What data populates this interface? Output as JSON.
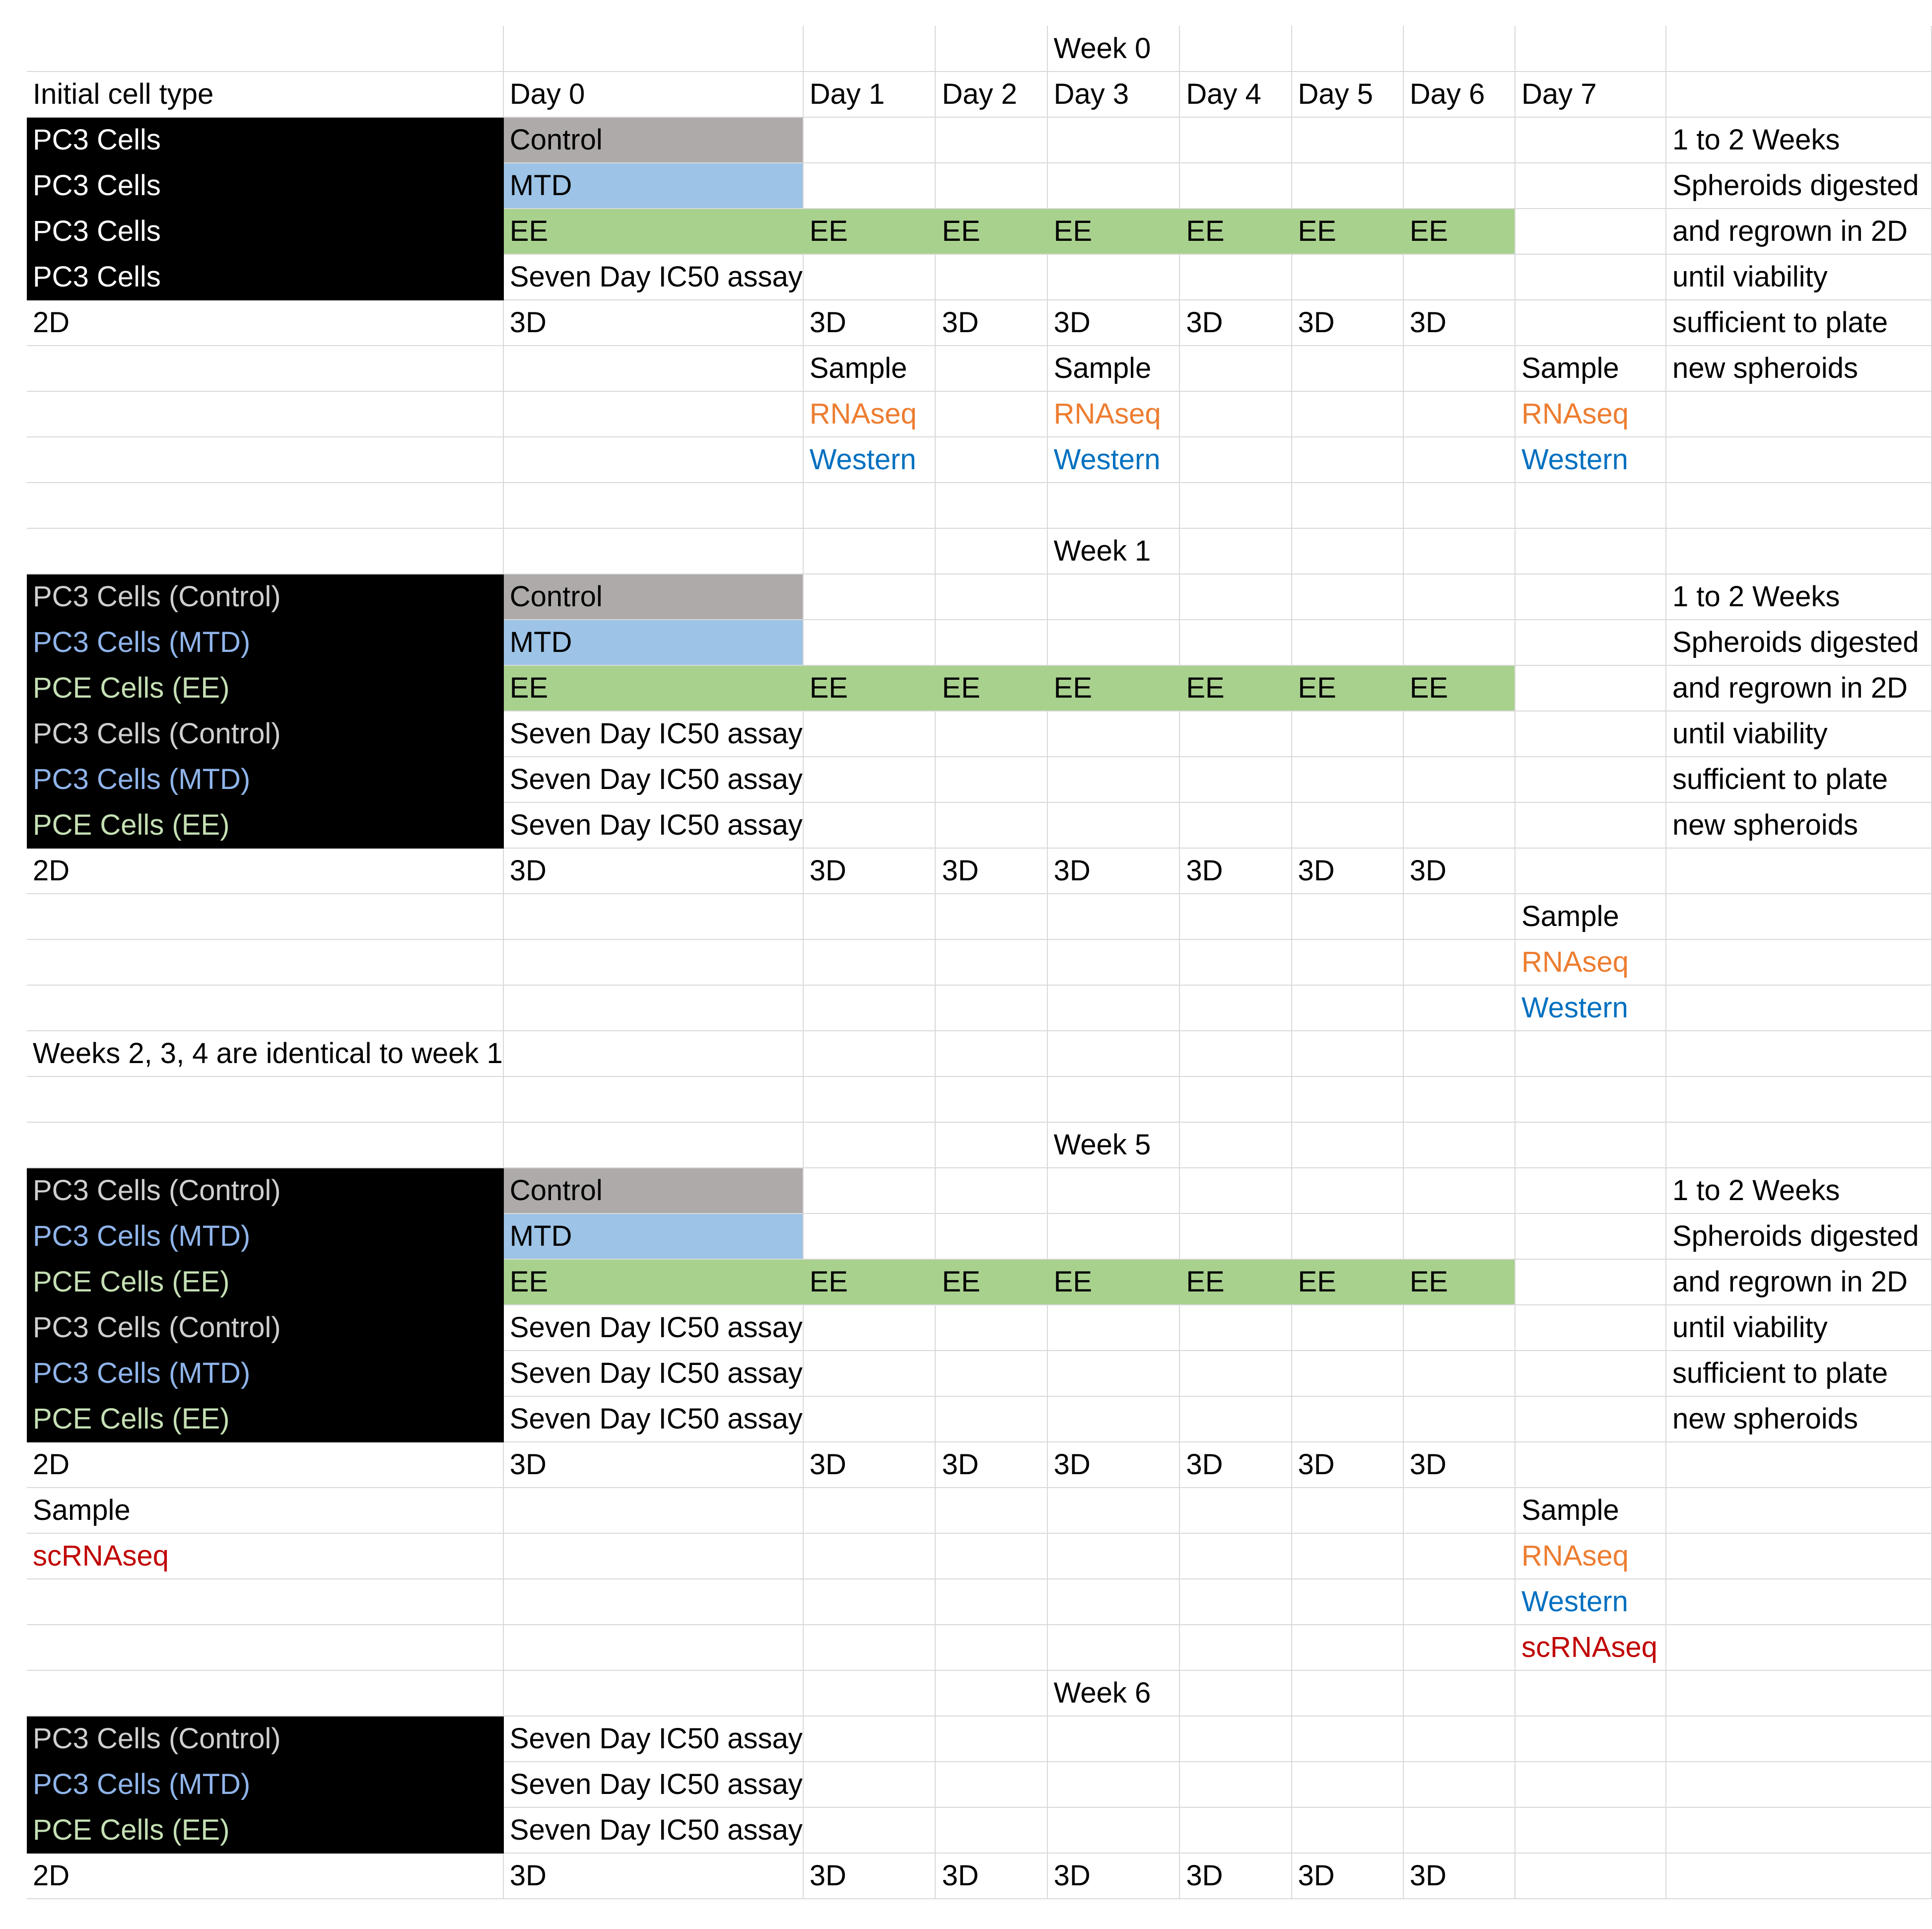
{
  "colors": {
    "control_fill": "#aeaaaa",
    "mtd_fill": "#9dc3e6",
    "ee_fill": "#a9d18e",
    "label_background": "#000000",
    "rnaseq_text": "#ed7d31",
    "western_text": "#0070c0",
    "scrnaseq_text": "#c00000",
    "gridline": "#d9d9d9"
  },
  "rows": [
    [
      "",
      "",
      "",
      "",
      "Week 0",
      "",
      "",
      "",
      "",
      ""
    ],
    [
      "Initial cell type",
      "Day 0",
      "Day 1",
      "Day 2",
      "Day 3",
      "Day 4",
      "Day 5",
      "Day 6",
      "Day 7",
      ""
    ],
    [
      "PC3 Cells",
      "Control",
      "",
      "",
      "",
      "",
      "",
      "",
      "",
      "1 to 2 Weeks"
    ],
    [
      "PC3 Cells",
      "MTD",
      "",
      "",
      "",
      "",
      "",
      "",
      "",
      "Spheroids digested"
    ],
    [
      "PC3 Cells",
      "EE",
      "EE",
      "EE",
      "EE",
      "EE",
      "EE",
      "EE",
      "",
      "and regrown in 2D"
    ],
    [
      "PC3 Cells",
      "Seven Day IC50 assay",
      "",
      "",
      "",
      "",
      "",
      "",
      "",
      "until viability"
    ],
    [
      "2D",
      "3D",
      "3D",
      "3D",
      "3D",
      "3D",
      "3D",
      "3D",
      "",
      "sufficient to plate"
    ],
    [
      "",
      "",
      "Sample",
      "",
      "Sample",
      "",
      "",
      "",
      "Sample",
      "new spheroids"
    ],
    [
      "",
      "",
      "RNAseq",
      "",
      "RNAseq",
      "",
      "",
      "",
      "RNAseq",
      ""
    ],
    [
      "",
      "",
      "Western",
      "",
      "Western",
      "",
      "",
      "",
      "Western",
      ""
    ],
    [
      "",
      "",
      "",
      "",
      "",
      "",
      "",
      "",
      "",
      ""
    ],
    [
      "",
      "",
      "",
      "",
      "Week 1",
      "",
      "",
      "",
      "",
      ""
    ],
    [
      "PC3 Cells (Control)",
      "Control",
      "",
      "",
      "",
      "",
      "",
      "",
      "",
      "1 to 2 Weeks"
    ],
    [
      "PC3 Cells (MTD)",
      "MTD",
      "",
      "",
      "",
      "",
      "",
      "",
      "",
      "Spheroids digested"
    ],
    [
      "PCE Cells (EE)",
      "EE",
      "EE",
      "EE",
      "EE",
      "EE",
      "EE",
      "EE",
      "",
      "and regrown in 2D"
    ],
    [
      "PC3 Cells (Control)",
      "Seven Day IC50 assay",
      "",
      "",
      "",
      "",
      "",
      "",
      "",
      "until viability"
    ],
    [
      "PC3 Cells (MTD)",
      "Seven Day IC50 assay",
      "",
      "",
      "",
      "",
      "",
      "",
      "",
      "sufficient to plate"
    ],
    [
      "PCE Cells (EE)",
      "Seven Day IC50 assay",
      "",
      "",
      "",
      "",
      "",
      "",
      "",
      "new spheroids"
    ],
    [
      "2D",
      "3D",
      "3D",
      "3D",
      "3D",
      "3D",
      "3D",
      "3D",
      "",
      ""
    ],
    [
      "",
      "",
      "",
      "",
      "",
      "",
      "",
      "",
      "Sample",
      ""
    ],
    [
      "",
      "",
      "",
      "",
      "",
      "",
      "",
      "",
      "RNAseq",
      ""
    ],
    [
      "",
      "",
      "",
      "",
      "",
      "",
      "",
      "",
      "Western",
      ""
    ],
    [
      "Weeks 2, 3, 4 are identical to week 1",
      "",
      "",
      "",
      "",
      "",
      "",
      "",
      "",
      ""
    ],
    [
      "",
      "",
      "",
      "",
      "",
      "",
      "",
      "",
      "",
      ""
    ],
    [
      "",
      "",
      "",
      "",
      "Week 5",
      "",
      "",
      "",
      "",
      ""
    ],
    [
      "PC3 Cells (Control)",
      "Control",
      "",
      "",
      "",
      "",
      "",
      "",
      "",
      "1 to 2 Weeks"
    ],
    [
      "PC3 Cells (MTD)",
      "MTD",
      "",
      "",
      "",
      "",
      "",
      "",
      "",
      "Spheroids digested"
    ],
    [
      "PCE Cells (EE)",
      "EE",
      "EE",
      "EE",
      "EE",
      "EE",
      "EE",
      "EE",
      "",
      "and regrown in 2D"
    ],
    [
      "PC3 Cells (Control)",
      "Seven Day IC50 assay",
      "",
      "",
      "",
      "",
      "",
      "",
      "",
      "until viability"
    ],
    [
      "PC3 Cells (MTD)",
      "Seven Day IC50 assay",
      "",
      "",
      "",
      "",
      "",
      "",
      "",
      "sufficient to plate"
    ],
    [
      "PCE Cells (EE)",
      "Seven Day IC50 assay",
      "",
      "",
      "",
      "",
      "",
      "",
      "",
      "new spheroids"
    ],
    [
      "2D",
      "3D",
      "3D",
      "3D",
      "3D",
      "3D",
      "3D",
      "3D",
      "",
      ""
    ],
    [
      "Sample",
      "",
      "",
      "",
      "",
      "",
      "",
      "",
      "Sample",
      ""
    ],
    [
      "scRNAseq",
      "",
      "",
      "",
      "",
      "",
      "",
      "",
      "RNAseq",
      ""
    ],
    [
      "",
      "",
      "",
      "",
      "",
      "",
      "",
      "",
      "Western",
      ""
    ],
    [
      "",
      "",
      "",
      "",
      "",
      "",
      "",
      "",
      "scRNAseq",
      ""
    ],
    [
      "",
      "",
      "",
      "",
      "Week 6",
      "",
      "",
      "",
      "",
      ""
    ],
    [
      "PC3 Cells (Control)",
      "Seven Day IC50 assay",
      "",
      "",
      "",
      "",
      "",
      "",
      "",
      ""
    ],
    [
      "PC3 Cells (MTD)",
      "Seven Day IC50 assay",
      "",
      "",
      "",
      "",
      "",
      "",
      "",
      ""
    ],
    [
      "PCE Cells (EE)",
      "Seven Day IC50 assay",
      "",
      "",
      "",
      "",
      "",
      "",
      "",
      ""
    ],
    [
      "2D",
      "3D",
      "3D",
      "3D",
      "3D",
      "3D",
      "3D",
      "3D",
      "",
      ""
    ]
  ]
}
